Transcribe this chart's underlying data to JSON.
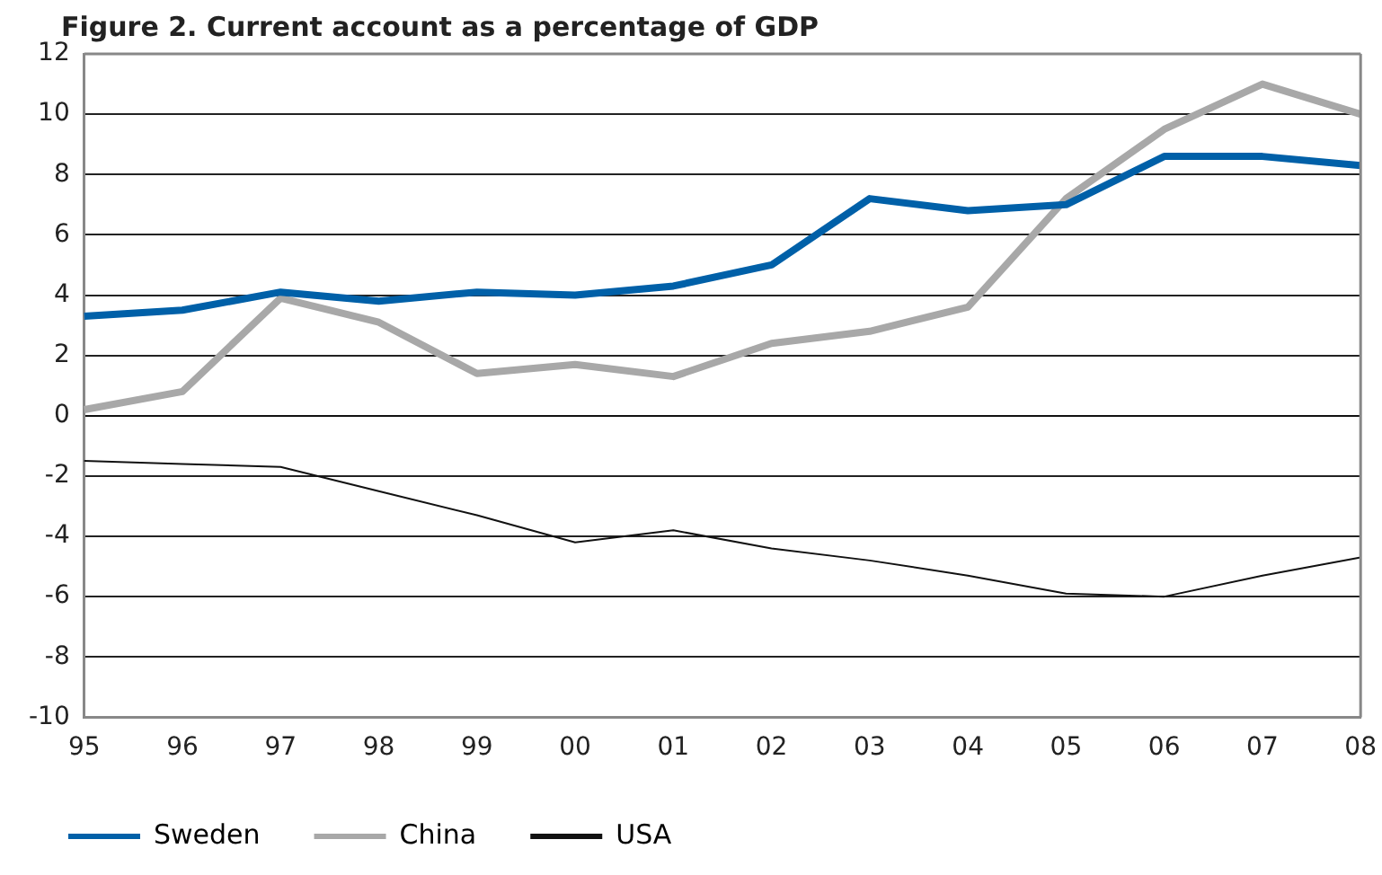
{
  "chart_data": {
    "type": "line",
    "title": "Figure 2. Current account as a percentage of GDP",
    "categories": [
      "95",
      "96",
      "97",
      "98",
      "99",
      "00",
      "01",
      "02",
      "03",
      "04",
      "05",
      "06",
      "07",
      "08"
    ],
    "series": [
      {
        "name": "Sweden",
        "color": "#0060a8",
        "values": [
          3.3,
          3.5,
          4.1,
          3.8,
          4.1,
          4.0,
          4.3,
          5.0,
          7.2,
          6.8,
          7.0,
          8.6,
          8.6,
          8.3
        ]
      },
      {
        "name": "China",
        "color": "#a8a8a8",
        "values": [
          0.2,
          0.8,
          3.9,
          3.1,
          1.4,
          1.7,
          1.3,
          2.4,
          2.8,
          3.6,
          7.2,
          9.5,
          11.0,
          10.0
        ]
      },
      {
        "name": "USA",
        "color": "#111111",
        "values": [
          -1.5,
          -1.6,
          -1.7,
          -2.5,
          -3.3,
          -4.2,
          -3.8,
          -4.4,
          -4.8,
          -5.3,
          -5.9,
          -6.0,
          -5.3,
          -4.7
        ]
      }
    ],
    "ylim": [
      -10,
      12
    ],
    "yticks": [
      -10,
      -8,
      -6,
      -4,
      -2,
      0,
      2,
      4,
      6,
      8,
      10,
      12
    ],
    "grid": "y",
    "legend": "bottom",
    "marker": "none",
    "line_style": "solid"
  }
}
